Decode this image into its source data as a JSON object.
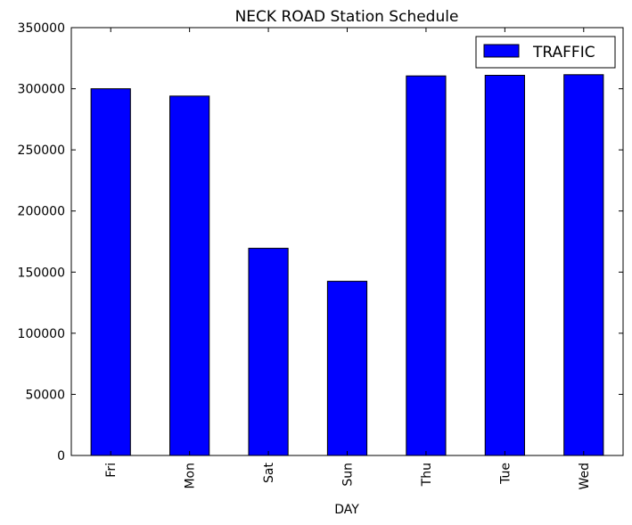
{
  "chart_data": {
    "type": "bar",
    "title": "NECK ROAD Station Schedule",
    "xlabel": "DAY",
    "ylabel": "",
    "categories": [
      "Fri",
      "Mon",
      "Sat",
      "Sun",
      "Thu",
      "Tue",
      "Wed"
    ],
    "series": [
      {
        "name": "TRAFFIC",
        "color": "#0000ff",
        "values": [
          300000,
          294000,
          169500,
          142500,
          310500,
          311000,
          311500
        ]
      }
    ],
    "ylim": [
      0,
      350000
    ],
    "yticks": [
      0,
      50000,
      100000,
      150000,
      200000,
      250000,
      300000,
      350000
    ],
    "ytick_labels": [
      "0",
      "50000",
      "100000",
      "150000",
      "200000",
      "250000",
      "300000",
      "350000"
    ],
    "grid": false,
    "legend": "top-right"
  }
}
